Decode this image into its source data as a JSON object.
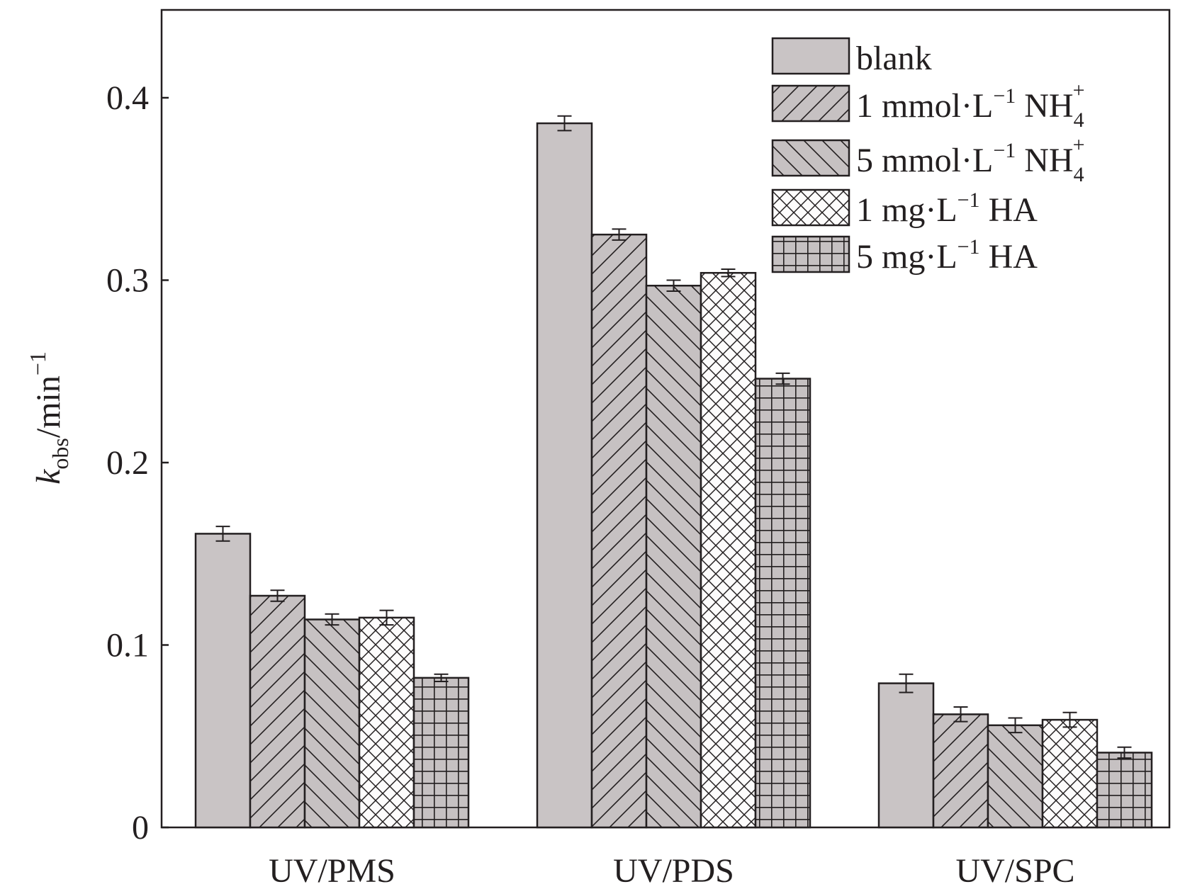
{
  "chart_data": {
    "type": "bar",
    "title": "",
    "ylabel": {
      "main": "k",
      "sub": "obs",
      "unit": "/min",
      "sup": "−1"
    },
    "xlabel": "",
    "ylim": [
      0,
      0.45
    ],
    "yticks": [
      {
        "value": 0,
        "label": "0"
      },
      {
        "value": 0.1,
        "label": "0.1"
      },
      {
        "value": 0.2,
        "label": "0.2"
      },
      {
        "value": 0.3,
        "label": "0.3"
      },
      {
        "value": 0.4,
        "label": "0.4"
      }
    ],
    "categories": [
      "UV/PMS",
      "UV/PDS",
      "UV/SPC"
    ],
    "series": [
      {
        "name": "blank",
        "legend": {
          "pre": "blank",
          "sup": "",
          "post": "",
          "ion": "",
          "ionSub": "",
          "ionSup": ""
        },
        "pattern": "solid",
        "values": [
          0.161,
          0.386,
          0.079
        ],
        "errors": [
          0.004,
          0.004,
          0.005
        ]
      },
      {
        "name": "1 mmol·L−1 NH4+",
        "legend": {
          "pre": "1 mmol·L",
          "sup": "−1",
          "post": "",
          "ion": "NH",
          "ionSub": "4",
          "ionSup": "+"
        },
        "pattern": "diag-right",
        "values": [
          0.127,
          0.325,
          0.062
        ],
        "errors": [
          0.003,
          0.003,
          0.004
        ]
      },
      {
        "name": "5 mmol·L−1 NH4+",
        "legend": {
          "pre": "5 mmol·L",
          "sup": "−1",
          "post": "",
          "ion": "NH",
          "ionSub": "4",
          "ionSup": "+"
        },
        "pattern": "diag-left",
        "values": [
          0.114,
          0.297,
          0.056
        ],
        "errors": [
          0.003,
          0.003,
          0.004
        ]
      },
      {
        "name": "1 mg·L−1 HA",
        "legend": {
          "pre": "1 mg·L",
          "sup": "−1",
          "post": " HA",
          "ion": "",
          "ionSub": "",
          "ionSup": ""
        },
        "pattern": "cross",
        "values": [
          0.115,
          0.304,
          0.059
        ],
        "errors": [
          0.004,
          0.002,
          0.004
        ]
      },
      {
        "name": "5 mg·L−1 HA",
        "legend": {
          "pre": "5 mg·L",
          "sup": "−1",
          "post": " HA",
          "ion": "",
          "ionSub": "",
          "ionSup": ""
        },
        "pattern": "grid",
        "values": [
          0.082,
          0.246,
          0.041
        ],
        "errors": [
          0.002,
          0.003,
          0.003
        ]
      }
    ],
    "legend_position": "top-right",
    "grid": false,
    "colors": {
      "bar_fill": "#c6c1c2",
      "blank_fill": "#c9c4c5",
      "pattern_light": "#fdfcfc",
      "stroke": "#231f20",
      "ink": "#231f20"
    }
  }
}
